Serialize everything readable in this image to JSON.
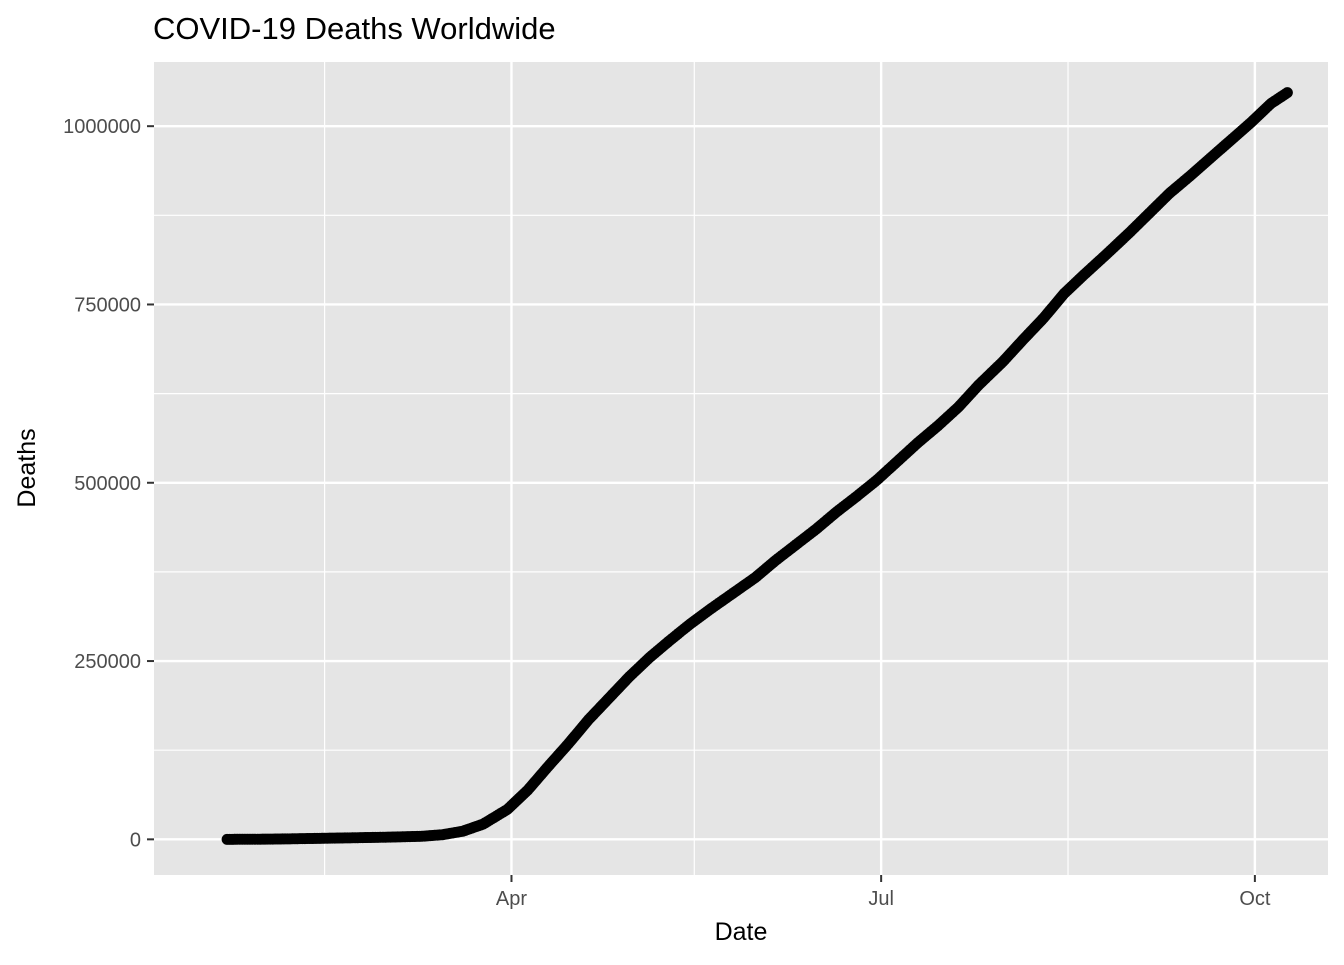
{
  "chart_data": {
    "type": "scatter",
    "title": "COVID-19 Deaths Worldwide",
    "xlabel": "Date",
    "ylabel": "Deaths",
    "x_range": [
      "2020-01-04",
      "2020-10-19"
    ],
    "ylim": [
      -50000,
      1090000
    ],
    "grid": true,
    "legend": "none",
    "colors": {
      "panel": "#e5e5e5",
      "grid": "#ffffff",
      "points": "#000000",
      "tick_text": "#4d4d4d",
      "text": "#000000"
    },
    "x_ticks": [
      {
        "date": "2020-04-01",
        "label": "Apr"
      },
      {
        "date": "2020-07-01",
        "label": "Jul"
      },
      {
        "date": "2020-10-01",
        "label": "Oct"
      }
    ],
    "x_minor_ticks": [
      "2020-02-15",
      "2020-05-16",
      "2020-08-16"
    ],
    "y_ticks": [
      {
        "value": 0,
        "label": "0"
      },
      {
        "value": 250000,
        "label": "250000"
      },
      {
        "value": 500000,
        "label": "500000"
      },
      {
        "value": 750000,
        "label": "750000"
      },
      {
        "value": 1000000,
        "label": "1000000"
      }
    ],
    "y_minor_ticks": [
      125000,
      375000,
      625000,
      875000
    ],
    "series": [
      {
        "values": [
          [
            "2020-01-22",
            0
          ],
          [
            "2020-02-01",
            250
          ],
          [
            "2020-02-15",
            1500
          ],
          [
            "2020-03-01",
            3000
          ],
          [
            "2020-03-10",
            4300
          ],
          [
            "2020-03-15",
            6500
          ],
          [
            "2020-03-20",
            11400
          ],
          [
            "2020-03-25",
            21300
          ],
          [
            "2020-03-31",
            42000
          ],
          [
            "2020-04-05",
            69000
          ],
          [
            "2020-04-10",
            102000
          ],
          [
            "2020-04-15",
            134000
          ],
          [
            "2020-04-20",
            168000
          ],
          [
            "2020-04-25",
            198000
          ],
          [
            "2020-04-30",
            228000
          ],
          [
            "2020-05-05",
            255000
          ],
          [
            "2020-05-10",
            279000
          ],
          [
            "2020-05-15",
            302000
          ],
          [
            "2020-05-20",
            323000
          ],
          [
            "2020-05-25",
            343000
          ],
          [
            "2020-05-31",
            367000
          ],
          [
            "2020-06-05",
            391000
          ],
          [
            "2020-06-10",
            413000
          ],
          [
            "2020-06-15",
            435000
          ],
          [
            "2020-06-20",
            459000
          ],
          [
            "2020-06-25",
            481000
          ],
          [
            "2020-06-30",
            504000
          ],
          [
            "2020-07-05",
            530000
          ],
          [
            "2020-07-10",
            556000
          ],
          [
            "2020-07-15",
            580000
          ],
          [
            "2020-07-20",
            606000
          ],
          [
            "2020-07-25",
            637000
          ],
          [
            "2020-07-31",
            670000
          ],
          [
            "2020-08-05",
            701000
          ],
          [
            "2020-08-10",
            731000
          ],
          [
            "2020-08-15",
            765000
          ],
          [
            "2020-08-20",
            792000
          ],
          [
            "2020-08-25",
            818000
          ],
          [
            "2020-08-31",
            850000
          ],
          [
            "2020-09-05",
            878000
          ],
          [
            "2020-09-10",
            906000
          ],
          [
            "2020-09-15",
            930000
          ],
          [
            "2020-09-20",
            955000
          ],
          [
            "2020-09-25",
            980000
          ],
          [
            "2020-09-30",
            1005000
          ],
          [
            "2020-10-05",
            1032000
          ],
          [
            "2020-10-09",
            1047000
          ]
        ]
      }
    ]
  }
}
